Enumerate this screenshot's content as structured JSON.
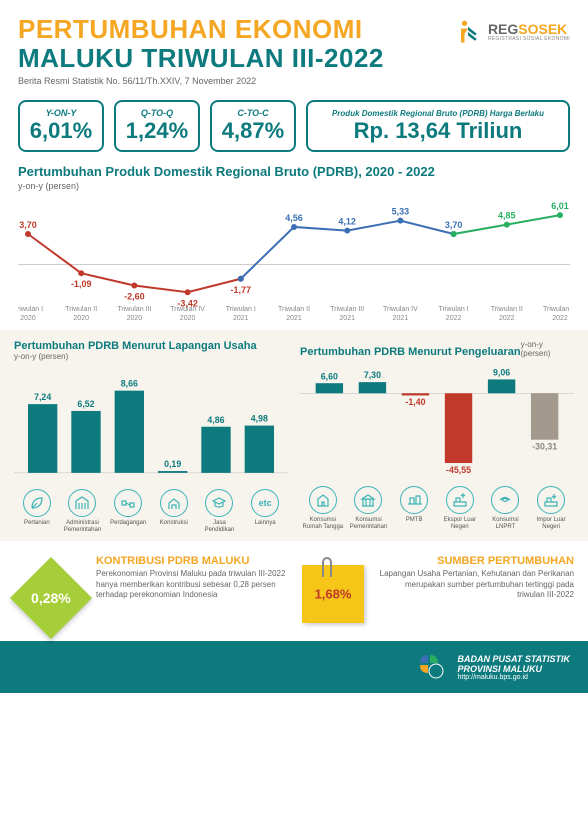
{
  "header": {
    "title1": "PERTUMBUHAN EKONOMI",
    "title2": "MALUKU TRIWULAN III-2022",
    "subtitle": "Berita Resmi Statistik No. 56/11/Th.XXIV, 7 November 2022",
    "logo_brand1": "REG",
    "logo_brand2": "SOSEK",
    "logo_sub": "REGISTRASI SOSIAL EKONOMI"
  },
  "stats": [
    {
      "label": "Y-ON-Y",
      "value": "6,01%"
    },
    {
      "label": "Q-TO-Q",
      "value": "1,24%"
    },
    {
      "label": "C-TO-C",
      "value": "4,87%"
    },
    {
      "label": "Produk Domestik Regional Bruto (PDRB) Harga Berlaku",
      "value": "Rp. 13,64 Triliun"
    }
  ],
  "line_chart": {
    "title": "Pertumbuhan Produk Domestik Regional Bruto (PDRB), 2020 - 2022",
    "sub": "y-on-y (persen)",
    "categories": [
      "Triwulan I 2020",
      "Triwulan II 2020",
      "Triwulan III 2020",
      "Triwulan IV 2020",
      "Triwulan I 2021",
      "Triwulan II 2021",
      "Triwulan III 2021",
      "Triwulan IV 2021",
      "Triwulan I 2022",
      "Triwulan II 2022",
      "Triwulan III 2022"
    ],
    "values": [
      3.7,
      -1.09,
      -2.6,
      -3.42,
      -1.77,
      4.56,
      4.12,
      5.33,
      3.7,
      4.85,
      6.01
    ],
    "value_labels": [
      "3,70",
      "-1,09",
      "-2,60",
      "-3,42",
      "-1,77",
      "4,56",
      "4,12",
      "5,33",
      "3,70",
      "4,85",
      "6,01"
    ],
    "seg1_color": "#c0392b",
    "seg2_color": "#3b6fb5",
    "seg3_color": "#27ae60",
    "y_range": [
      -4,
      7
    ],
    "baseline_color": "#999"
  },
  "bars_left": {
    "title": "Pertumbuhan  PDRB Menurut Lapangan Usaha",
    "sub": "y-on-y (persen)",
    "items": [
      {
        "label": "Pertanian",
        "value": 7.24,
        "label_str": "7,24"
      },
      {
        "label": "Administrasi Pemerintahan",
        "value": 6.52,
        "label_str": "6,52"
      },
      {
        "label": "Perdagangan",
        "value": 8.66,
        "label_str": "8,66"
      },
      {
        "label": "Konstruksi",
        "value": 0.19,
        "label_str": "0,19"
      },
      {
        "label": "Jasa Pendidikan",
        "value": 4.86,
        "label_str": "4,86"
      },
      {
        "label": "Lainnya",
        "value": 4.98,
        "label_str": "4,98"
      }
    ],
    "bar_color": "#0d7a7e",
    "y_max": 10
  },
  "bars_right": {
    "title": "Pertumbuhan  PDRB Menurut Pengeluaran",
    "sub": "y-on-y (persen)",
    "items": [
      {
        "label": "Konsumsi Rumah Tangga",
        "value": 6.6,
        "label_str": "6,60",
        "color": "#0d7a7e"
      },
      {
        "label": "Konsumsi Pemerintahan",
        "value": 7.3,
        "label_str": "7,30",
        "color": "#0d7a7e"
      },
      {
        "label": "PMTB",
        "value": -1.4,
        "label_str": "-1,40",
        "color": "#c0392b"
      },
      {
        "label": "Ekspor Luar Negeri",
        "value": -45.55,
        "label_str": "-45,55",
        "color": "#c0392b"
      },
      {
        "label": "Konsumsi LNPRT",
        "value": 9.06,
        "label_str": "9,06",
        "color": "#0d7a7e"
      },
      {
        "label": "Impor Luar Negeri",
        "value": -30.31,
        "label_str": "-30,31",
        "color": "#a39a8d"
      }
    ],
    "y_range": [
      -50,
      12
    ]
  },
  "bottom": {
    "left": {
      "badge": "0,28%",
      "title": "KONTRIBUSI PDRB MALUKU",
      "body": "Perekonomian Provinsi Maluku pada triwulan III-2022 hanya memberikan kontribusi sebesar 0,28 persen terhadap perekonomian Indonesia"
    },
    "right": {
      "badge": "1,68%",
      "title": "SUMBER PERTUMBUHAN",
      "body": "Lapangan Usaha Pertanian, Kehutanan dan Perikanan merupakan sumber pertumbuhan tertinggi pada triwulan III-2022"
    }
  },
  "footer": {
    "line1": "BADAN PUSAT STATISTIK",
    "line2": "PROVINSI MALUKU",
    "url": "http://maluku.bps.go.id"
  },
  "icons_left": [
    "Pertanian",
    "Administrasi Pemerintahan",
    "Perdagangan",
    "Konstruksi",
    "Jasa Pendidikan",
    "Lainnya"
  ],
  "icons_right": [
    "Konsumsi Rumah Tangga",
    "Konsumsi Pemerintahan",
    "PMTB",
    "Ekspor Luar Negeri",
    "Konsumsi LNPRT",
    "Impor Luar Negeri"
  ],
  "etc_label": "etc"
}
